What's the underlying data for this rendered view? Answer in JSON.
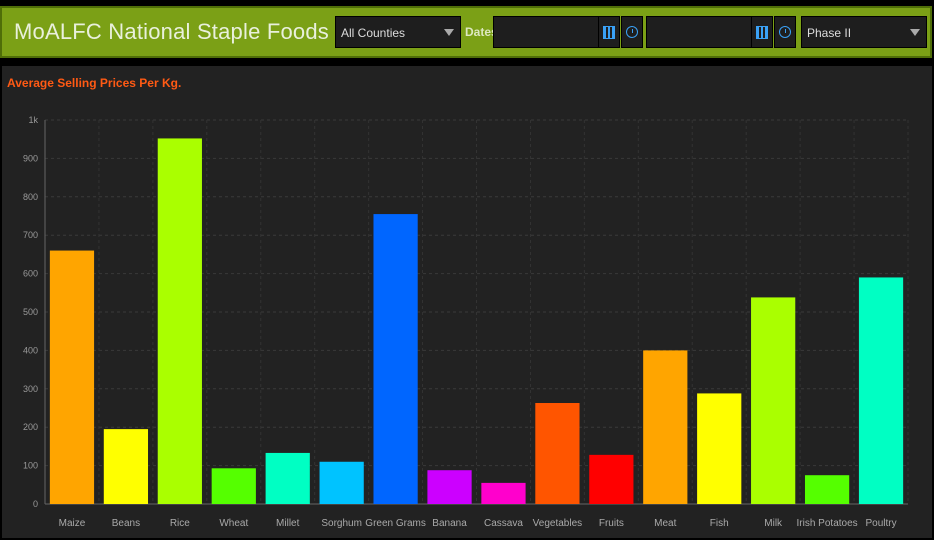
{
  "header": {
    "title": "MoALFC National Staple Foods Das...",
    "county_select": "All Counties",
    "dates_label": "Dates",
    "phase_select": "Phase II"
  },
  "panel": {
    "title": "Average Selling Prices Per Kg."
  },
  "chart_data": {
    "type": "bar",
    "categories": [
      "Maize",
      "Beans",
      "Rice",
      "Wheat",
      "Millet",
      "Sorghum",
      "Green Grams",
      "Banana",
      "Cassava",
      "Vegetables",
      "Fruits",
      "Meat",
      "Fish",
      "Milk",
      "Irish Potatoes",
      "Poultry"
    ],
    "values": [
      660,
      195,
      952,
      93,
      133,
      110,
      755,
      88,
      55,
      263,
      128,
      400,
      288,
      538,
      75,
      590
    ],
    "colors": [
      "#ffa500",
      "#ffff00",
      "#aaff00",
      "#55ff00",
      "#00ffc3",
      "#00c3ff",
      "#0066ff",
      "#cc00ff",
      "#ff00cc",
      "#ff5500",
      "#ff0000",
      "#ffa500",
      "#ffff00",
      "#aaff00",
      "#55ff00",
      "#00ffc3"
    ],
    "yticks": [
      "0",
      "100",
      "200",
      "300",
      "400",
      "500",
      "600",
      "700",
      "800",
      "900",
      "1k"
    ],
    "ylim": [
      0,
      1000
    ],
    "grid": true
  }
}
